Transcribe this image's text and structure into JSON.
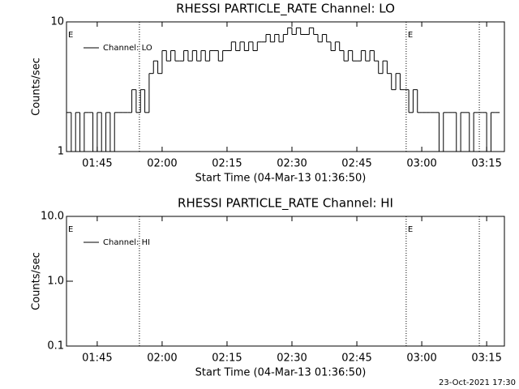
{
  "chart_data": [
    {
      "type": "line",
      "title": "RHESSI PARTICLE_RATE Channel: LO",
      "xlabel": "Start Time (04-Mar-13 01:36:50)",
      "ylabel": "Counts/sec",
      "log_y": true,
      "legend": "upper left",
      "xlim": [
        97.9,
        199.1
      ],
      "xticks": [
        {
          "value": 105,
          "label": "01:45"
        },
        {
          "value": 120,
          "label": "02:00"
        },
        {
          "value": 135,
          "label": "02:15"
        },
        {
          "value": 150,
          "label": "02:30"
        },
        {
          "value": 165,
          "label": "02:45"
        },
        {
          "value": 180,
          "label": "03:00"
        },
        {
          "value": 195,
          "label": "03:15"
        }
      ],
      "ylim": [
        1,
        10
      ],
      "yticks": [
        1,
        10
      ],
      "vlines": [
        114.75,
        176.4,
        193.3
      ],
      "annotations": [
        {
          "text": "E",
          "x": 97.9
        },
        {
          "text": "E",
          "x": 176.4
        }
      ],
      "x": [
        98,
        99,
        100,
        101,
        102,
        103,
        104,
        105,
        106,
        107,
        108,
        109,
        110,
        111,
        112,
        113,
        114,
        115,
        116,
        117,
        118,
        119,
        120,
        121,
        122,
        123,
        124,
        125,
        126,
        127,
        128,
        129,
        130,
        131,
        132,
        133,
        134,
        135,
        136,
        137,
        138,
        139,
        140,
        141,
        142,
        143,
        144,
        145,
        146,
        147,
        148,
        149,
        150,
        151,
        152,
        153,
        154,
        155,
        156,
        157,
        158,
        159,
        160,
        161,
        162,
        163,
        164,
        165,
        166,
        167,
        168,
        169,
        170,
        171,
        172,
        173,
        174,
        175,
        176,
        177,
        178,
        179,
        180,
        181,
        182,
        183,
        184,
        185,
        186,
        187,
        188,
        189,
        190,
        191,
        192,
        193,
        194,
        195,
        196,
        197
      ],
      "series": [
        {
          "name": "Channel: LO",
          "color": "#000000",
          "values": [
            2,
            1,
            2,
            1,
            2,
            2,
            1,
            2,
            1,
            2,
            1,
            2,
            2,
            2,
            2,
            3,
            2,
            3,
            2,
            4,
            5,
            4,
            6,
            5,
            6,
            5,
            5,
            6,
            5,
            6,
            5,
            6,
            5,
            6,
            6,
            5,
            6,
            6,
            7,
            6,
            7,
            6,
            7,
            6,
            7,
            7,
            8,
            7,
            8,
            7,
            8,
            9,
            8,
            9,
            8,
            8,
            9,
            8,
            7,
            8,
            7,
            6,
            7,
            6,
            5,
            6,
            5,
            5,
            6,
            5,
            6,
            5,
            4,
            5,
            4,
            3,
            4,
            3,
            3,
            2,
            3,
            2,
            2,
            2,
            2,
            2,
            1,
            2,
            2,
            2,
            1,
            2,
            2,
            1,
            2,
            2,
            2,
            1,
            2,
            2
          ]
        }
      ]
    },
    {
      "type": "line",
      "title": "RHESSI PARTICLE_RATE Channel: HI",
      "xlabel": "Start Time (04-Mar-13 01:36:50)",
      "ylabel": "Counts/sec",
      "log_y": true,
      "legend": "upper left",
      "xlim": [
        97.9,
        199.1
      ],
      "xticks": [
        {
          "value": 105,
          "label": "01:45"
        },
        {
          "value": 120,
          "label": "02:00"
        },
        {
          "value": 135,
          "label": "02:15"
        },
        {
          "value": 150,
          "label": "02:30"
        },
        {
          "value": 165,
          "label": "02:45"
        },
        {
          "value": 180,
          "label": "03:00"
        },
        {
          "value": 195,
          "label": "03:15"
        }
      ],
      "ylim": [
        0.1,
        10
      ],
      "yticks": [
        0.1,
        {
          "value": 1,
          "label": "1.0"
        },
        {
          "value": 10,
          "label": "10.0"
        }
      ],
      "vlines": [
        114.75,
        176.4,
        193.3
      ],
      "annotations": [
        {
          "text": "E",
          "x": 97.9
        },
        {
          "text": "E",
          "x": 176.4
        }
      ],
      "x": [],
      "series": [
        {
          "name": "Channel: HI",
          "color": "#000000",
          "values": []
        }
      ]
    }
  ],
  "footer": "23-Oct-2021 17:30"
}
